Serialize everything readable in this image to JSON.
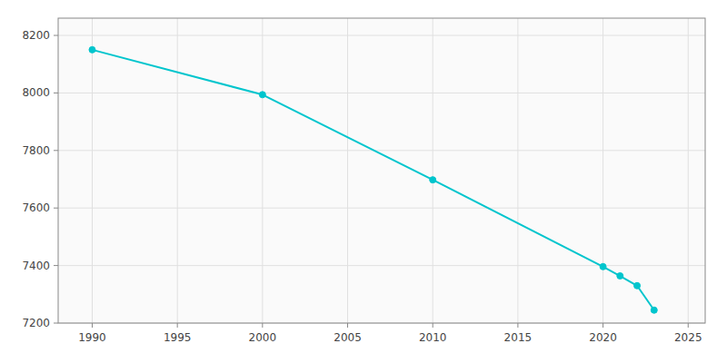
{
  "chart_data": {
    "type": "line",
    "x": [
      1990,
      2000,
      2010,
      2020,
      2021,
      2022,
      2023
    ],
    "values": [
      8150,
      7994,
      7698,
      7396,
      7364,
      7330,
      7245
    ],
    "color": "#00C5CD",
    "marker": "circle",
    "xlim": [
      1988,
      2026
    ],
    "ylim": [
      7200,
      8260
    ],
    "xticks": [
      1990,
      1995,
      2000,
      2005,
      2010,
      2015,
      2020,
      2025
    ],
    "yticks": [
      7200,
      7400,
      7600,
      7800,
      8000,
      8200
    ],
    "grid": true
  }
}
